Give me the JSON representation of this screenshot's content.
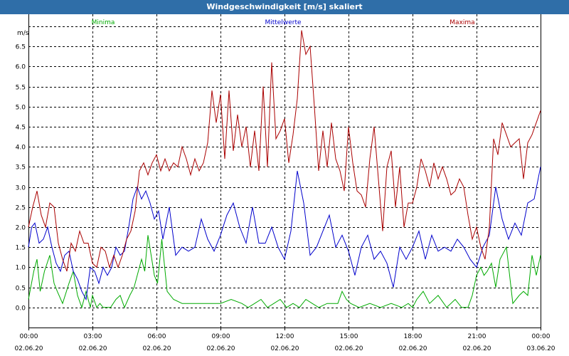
{
  "window": {
    "title": "Windgeschwindigkeit [m/s] skaliert"
  },
  "chart_data": {
    "type": "line",
    "ylabel": "m/s",
    "ylim": [
      -0.5,
      7.3
    ],
    "grid": true,
    "y_ticks": [
      "0.0",
      "0.5",
      "1.0",
      "1.5",
      "2.0",
      "2.5",
      "3.0",
      "3.5",
      "4.0",
      "4.5",
      "5.0",
      "5.5",
      "6.0",
      "6.5"
    ],
    "x_ticks": [
      {
        "time": "00:00",
        "date": "02.06.20"
      },
      {
        "time": "03:00",
        "date": "02.06.20"
      },
      {
        "time": "06:00",
        "date": "02.06.20"
      },
      {
        "time": "09:00",
        "date": "02.06.20"
      },
      {
        "time": "12:00",
        "date": "02.06.20"
      },
      {
        "time": "15:00",
        "date": "02.06.20"
      },
      {
        "time": "18:00",
        "date": "02.06.20"
      },
      {
        "time": "21:00",
        "date": "02.06.20"
      },
      {
        "time": "00:00",
        "date": "03.06.20"
      }
    ],
    "x_hours": [
      0,
      24
    ],
    "series": [
      {
        "name": "Minima",
        "color": "#00aa00",
        "hours": [
          0,
          0.25,
          0.4,
          0.55,
          0.75,
          1.0,
          1.2,
          1.35,
          1.6,
          1.9,
          2.1,
          2.3,
          2.5,
          2.7,
          2.9,
          3.0,
          3.2,
          3.35,
          3.5,
          3.65,
          3.85,
          4.1,
          4.3,
          4.5,
          4.75,
          4.95,
          5.15,
          5.3,
          5.45,
          5.6,
          5.75,
          5.9,
          6.05,
          6.25,
          6.5,
          6.8,
          7.2,
          7.6,
          8.0,
          8.5,
          9.0,
          9.5,
          10.0,
          10.3,
          10.6,
          10.9,
          11.2,
          11.5,
          11.8,
          12.1,
          12.4,
          12.7,
          13.0,
          13.3,
          13.6,
          14.0,
          14.5,
          14.7,
          14.9,
          15.1,
          15.5,
          16.0,
          16.5,
          17.0,
          17.5,
          17.8,
          18.0,
          18.2,
          18.5,
          18.8,
          19.2,
          19.6,
          20.0,
          20.3,
          20.6,
          20.8,
          21.0,
          21.2,
          21.35,
          21.5,
          21.7,
          21.9,
          22.1,
          22.4,
          22.7,
          23.0,
          23.2,
          23.4,
          23.6,
          23.8,
          24.0
        ],
        "values": [
          0.2,
          0.9,
          1.2,
          0.4,
          0.9,
          1.3,
          0.6,
          0.4,
          0.1,
          0.6,
          0.9,
          0.3,
          0.0,
          0.4,
          0.0,
          0.3,
          0.0,
          0.1,
          0.0,
          0.0,
          0.0,
          0.2,
          0.3,
          0.0,
          0.3,
          0.5,
          0.9,
          1.2,
          0.9,
          1.8,
          1.3,
          0.8,
          0.6,
          1.7,
          0.4,
          0.2,
          0.1,
          0.1,
          0.1,
          0.1,
          0.1,
          0.2,
          0.1,
          0.0,
          0.1,
          0.2,
          0.0,
          0.1,
          0.2,
          0.0,
          0.1,
          0.0,
          0.2,
          0.1,
          0.0,
          0.1,
          0.1,
          0.4,
          0.2,
          0.1,
          0.0,
          0.1,
          0.0,
          0.1,
          0.0,
          0.1,
          0.0,
          0.2,
          0.4,
          0.1,
          0.3,
          0.0,
          0.2,
          0.0,
          0.0,
          0.3,
          0.8,
          1.0,
          0.8,
          0.9,
          1.1,
          0.5,
          1.2,
          1.5,
          0.1,
          0.3,
          0.4,
          0.3,
          1.3,
          0.8,
          1.3
        ]
      },
      {
        "name": "Mittelwerte",
        "color": "#0000cc",
        "hours": [
          0,
          0.15,
          0.3,
          0.5,
          0.7,
          0.9,
          1.1,
          1.3,
          1.5,
          1.7,
          1.9,
          2.1,
          2.3,
          2.5,
          2.7,
          2.9,
          3.1,
          3.3,
          3.5,
          3.7,
          3.9,
          4.1,
          4.3,
          4.5,
          4.7,
          4.9,
          5.1,
          5.3,
          5.5,
          5.7,
          5.9,
          6.1,
          6.3,
          6.6,
          6.9,
          7.2,
          7.5,
          7.8,
          8.1,
          8.4,
          8.7,
          9.0,
          9.3,
          9.6,
          9.9,
          10.2,
          10.5,
          10.8,
          11.1,
          11.4,
          11.7,
          12.0,
          12.3,
          12.6,
          12.9,
          13.2,
          13.5,
          13.8,
          14.1,
          14.4,
          14.7,
          15.0,
          15.3,
          15.6,
          15.9,
          16.2,
          16.5,
          16.8,
          17.1,
          17.4,
          17.7,
          18.0,
          18.3,
          18.6,
          18.9,
          19.2,
          19.5,
          19.8,
          20.1,
          20.4,
          20.7,
          21.0,
          21.3,
          21.6,
          21.9,
          22.2,
          22.5,
          22.8,
          23.1,
          23.4,
          23.7,
          24.0
        ],
        "values": [
          1.5,
          2.0,
          2.1,
          1.6,
          1.7,
          2.0,
          1.5,
          1.1,
          0.9,
          1.3,
          1.4,
          0.9,
          0.7,
          0.4,
          0.2,
          1.0,
          0.9,
          0.6,
          1.0,
          0.8,
          1.0,
          1.5,
          1.3,
          1.4,
          2.0,
          2.7,
          3.0,
          2.7,
          2.9,
          2.6,
          2.2,
          2.4,
          1.7,
          2.5,
          1.3,
          1.5,
          1.4,
          1.5,
          2.2,
          1.7,
          1.4,
          1.8,
          2.3,
          2.6,
          2.0,
          1.6,
          2.5,
          1.6,
          1.6,
          2.0,
          1.5,
          1.2,
          1.9,
          3.4,
          2.6,
          1.3,
          1.5,
          1.9,
          2.3,
          1.5,
          1.8,
          1.4,
          0.8,
          1.5,
          1.8,
          1.2,
          1.4,
          1.1,
          0.5,
          1.5,
          1.2,
          1.5,
          1.9,
          1.2,
          1.8,
          1.4,
          1.5,
          1.4,
          1.7,
          1.5,
          1.2,
          1.0,
          1.5,
          1.8,
          3.0,
          2.2,
          1.7,
          2.1,
          1.8,
          2.6,
          2.7,
          3.5
        ]
      },
      {
        "name": "Maxima",
        "color": "#aa0000",
        "hours": [
          0,
          0.2,
          0.4,
          0.6,
          0.8,
          1.0,
          1.2,
          1.4,
          1.6,
          1.8,
          2.0,
          2.2,
          2.4,
          2.6,
          2.8,
          3.0,
          3.2,
          3.4,
          3.6,
          3.8,
          4.0,
          4.2,
          4.4,
          4.6,
          4.8,
          5.0,
          5.2,
          5.4,
          5.6,
          5.8,
          6.0,
          6.2,
          6.4,
          6.6,
          6.8,
          7.0,
          7.2,
          7.4,
          7.6,
          7.8,
          8.0,
          8.2,
          8.4,
          8.6,
          8.8,
          9.0,
          9.2,
          9.4,
          9.6,
          9.8,
          10.0,
          10.2,
          10.4,
          10.6,
          10.8,
          11.0,
          11.2,
          11.4,
          11.6,
          11.8,
          12.0,
          12.2,
          12.4,
          12.6,
          12.8,
          13.0,
          13.2,
          13.4,
          13.6,
          13.8,
          14.0,
          14.2,
          14.4,
          14.6,
          14.8,
          15.0,
          15.2,
          15.4,
          15.6,
          15.8,
          16.0,
          16.2,
          16.4,
          16.6,
          16.8,
          17.0,
          17.2,
          17.4,
          17.6,
          17.8,
          18.0,
          18.2,
          18.4,
          18.6,
          18.8,
          19.0,
          19.2,
          19.4,
          19.6,
          19.8,
          20.0,
          20.2,
          20.4,
          20.6,
          20.8,
          21.0,
          21.2,
          21.4,
          21.6,
          21.8,
          22.0,
          22.2,
          22.4,
          22.6,
          22.8,
          23.0,
          23.2,
          23.4,
          23.6,
          23.8,
          24.0
        ],
        "values": [
          2.0,
          2.5,
          2.9,
          2.3,
          2.0,
          2.6,
          2.5,
          1.6,
          1.2,
          0.9,
          1.6,
          1.4,
          1.9,
          1.6,
          1.6,
          1.1,
          1.0,
          1.5,
          1.4,
          1.0,
          1.3,
          1.0,
          1.3,
          1.7,
          1.9,
          2.4,
          3.4,
          3.6,
          3.3,
          3.6,
          3.8,
          3.4,
          3.7,
          3.4,
          3.6,
          3.5,
          4.0,
          3.7,
          3.3,
          3.7,
          3.4,
          3.6,
          4.1,
          5.4,
          4.6,
          5.3,
          3.7,
          5.4,
          3.9,
          4.8,
          4.0,
          4.5,
          3.5,
          4.4,
          3.4,
          5.5,
          3.5,
          6.1,
          4.2,
          4.4,
          4.7,
          3.6,
          4.3,
          5.2,
          6.9,
          6.3,
          6.5,
          5.0,
          3.4,
          4.4,
          3.5,
          4.6,
          3.7,
          3.4,
          2.9,
          4.5,
          3.6,
          2.9,
          2.8,
          2.5,
          3.7,
          4.5,
          3.2,
          1.9,
          3.5,
          3.9,
          2.5,
          3.5,
          2.0,
          2.6,
          2.6,
          3.0,
          3.7,
          3.4,
          3.0,
          3.6,
          3.2,
          3.5,
          3.2,
          2.8,
          2.9,
          3.2,
          3.0,
          2.3,
          1.7,
          2.0,
          1.5,
          1.2,
          2.0,
          4.2,
          3.8,
          4.6,
          4.3,
          4.0,
          4.1,
          4.2,
          3.2,
          4.1,
          4.3,
          4.6,
          4.9
        ]
      }
    ]
  }
}
